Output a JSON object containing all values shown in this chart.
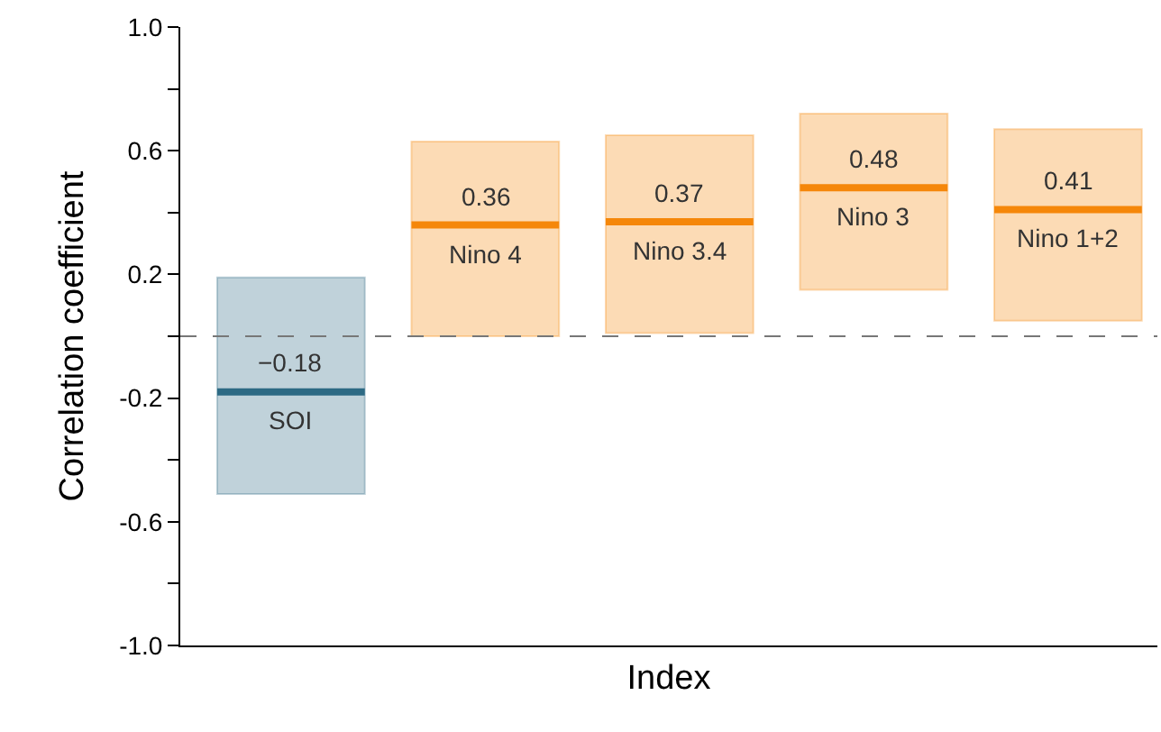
{
  "chart_data": {
    "type": "box",
    "xlabel": "Index",
    "ylabel": "Correlation coefficient",
    "categories": [
      "SOI",
      "Nino 4",
      "Nino 3.4",
      "Nino 3",
      "Nino 1+2"
    ],
    "boxes": [
      {
        "low": -0.51,
        "q1": -0.51,
        "median": -0.18,
        "q3": 0.19,
        "high": 0.19
      },
      {
        "low": 0.0,
        "q1": 0.0,
        "median": 0.36,
        "q3": 0.63,
        "high": 0.63
      },
      {
        "low": 0.01,
        "q1": 0.01,
        "median": 0.37,
        "q3": 0.65,
        "high": 0.65
      },
      {
        "low": 0.15,
        "q1": 0.15,
        "median": 0.48,
        "q3": 0.72,
        "high": 0.72
      },
      {
        "low": 0.05,
        "q1": 0.05,
        "median": 0.41,
        "q3": 0.67,
        "high": 0.67
      }
    ],
    "value_labels": [
      "−0.18",
      "0.36",
      "0.37",
      "0.48",
      "0.41"
    ],
    "colors": [
      "#2d6a84",
      "#f5870a",
      "#f5870a",
      "#f5870a",
      "#f5870a"
    ],
    "ylim": [
      -1.0,
      1.0
    ],
    "yticks": [
      {
        "value": -1.0,
        "label": "-1.0"
      },
      {
        "value": -0.8,
        "label": null
      },
      {
        "value": -0.6,
        "label": "-0.6"
      },
      {
        "value": -0.4,
        "label": null
      },
      {
        "value": -0.2,
        "label": "-0.2"
      },
      {
        "value": 0,
        "label": null
      },
      {
        "value": 0.2,
        "label": "0.2"
      },
      {
        "value": 0.4,
        "label": null
      },
      {
        "value": 0.6,
        "label": "0.6"
      },
      {
        "value": 0.8,
        "label": null
      },
      {
        "value": 1.0,
        "label": "1.0"
      }
    ],
    "ref_lines": [
      {
        "axis": "y",
        "value": 0,
        "color": "#777777",
        "line_style": "dashed"
      }
    ],
    "tick_labels": "y"
  }
}
